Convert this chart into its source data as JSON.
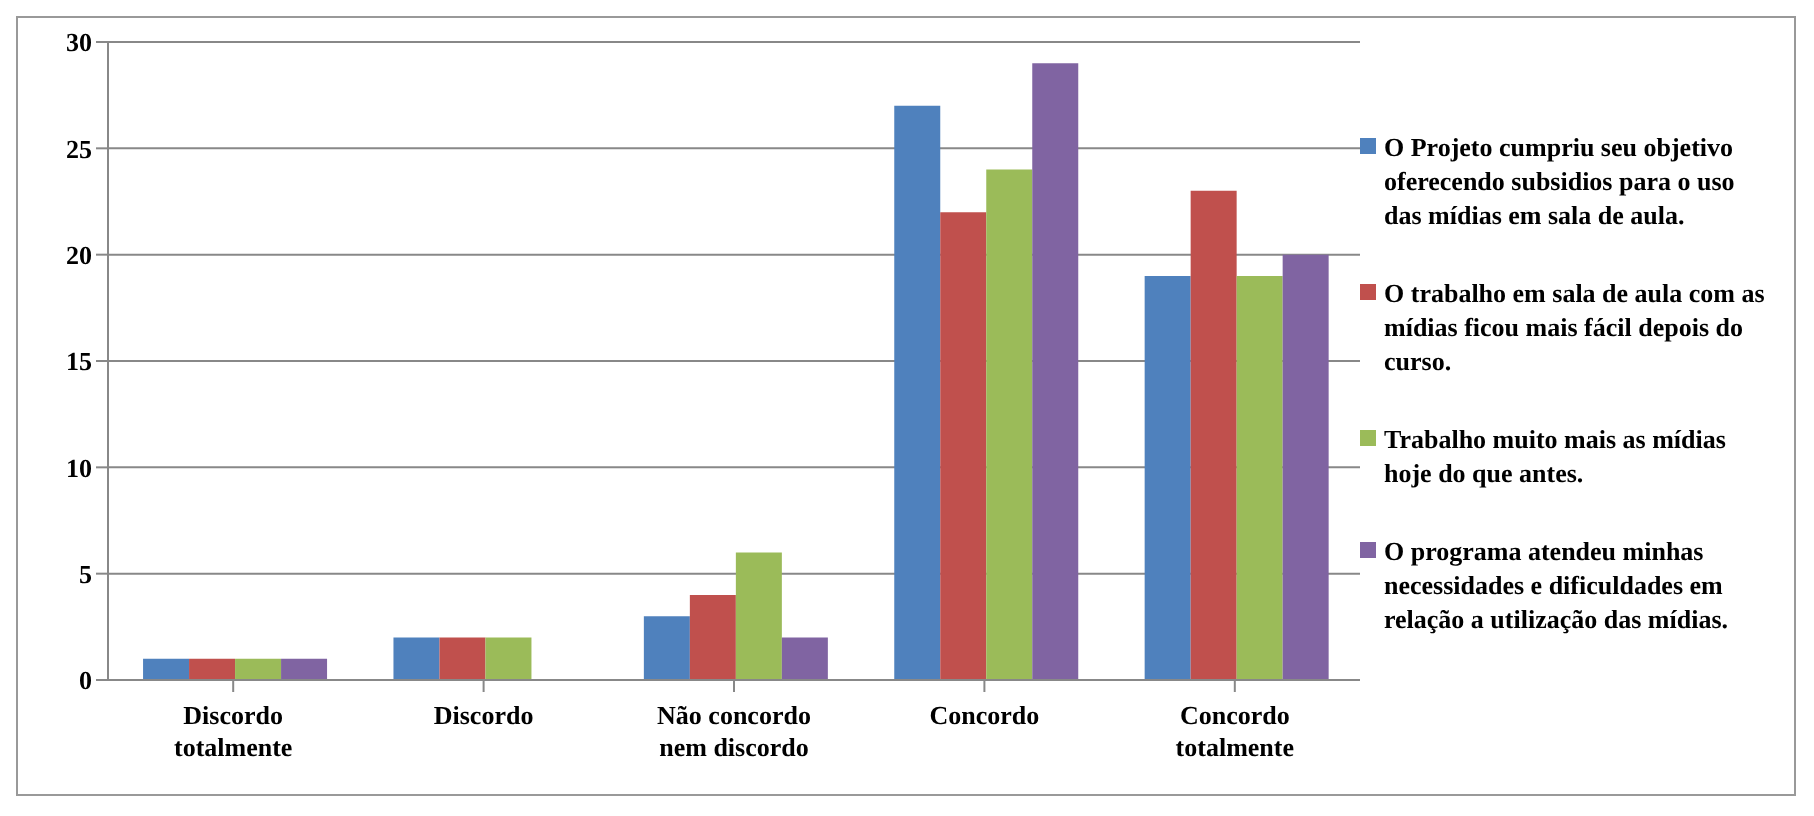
{
  "chart_data": {
    "type": "bar",
    "categories": [
      "Discordo totalmente",
      "Discordo",
      "Não concordo nem discordo",
      "Concordo",
      "Concordo totalmente"
    ],
    "series": [
      {
        "name": "O Projeto cumpriu seu objetivo oferecendo subsidios para o uso das mídias em sala de aula.",
        "color": "#4f81bd",
        "values": [
          1,
          2,
          3,
          27,
          19
        ]
      },
      {
        "name": "O trabalho em sala de aula com as mídias ficou mais fácil depois do curso.",
        "color": "#c0504d",
        "values": [
          1,
          2,
          4,
          22,
          23
        ]
      },
      {
        "name": "Trabalho muito mais as mídias hoje do que antes.",
        "color": "#9bbb59",
        "values": [
          1,
          2,
          6,
          24,
          19
        ]
      },
      {
        "name": "O programa atendeu minhas necessidades e dificuldades em relação a utilização das mídias.",
        "color": "#8064a2",
        "values": [
          1,
          0,
          2,
          29,
          20
        ]
      }
    ],
    "ylim": [
      0,
      30
    ],
    "yticks": [
      0,
      5,
      10,
      15,
      20,
      25,
      30
    ],
    "grid": "y",
    "legend": "right"
  }
}
